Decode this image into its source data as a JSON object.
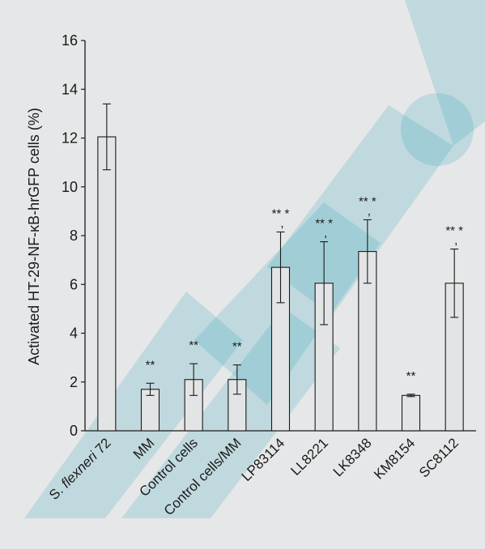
{
  "colors": {
    "background": "#e6e7e8",
    "bar_fill": "#e3e4e5",
    "bar_stroke": "#1a1a1a",
    "watermark": "#2aa4b9"
  },
  "chart_data": {
    "type": "bar",
    "title": "",
    "xlabel": "",
    "ylabel": "Activated HT-29-NF-κB-hrGFP cells (%)",
    "ylim": [
      0,
      16
    ],
    "yticks": [
      0,
      2,
      4,
      6,
      8,
      10,
      12,
      14,
      16
    ],
    "categories": [
      "S. flexneri 72",
      "MM",
      "Control cells",
      "Control cells/MM",
      "LP83114",
      "LL8221",
      "LK8348",
      "KM8154",
      "SC8112"
    ],
    "values": [
      12.05,
      1.7,
      2.1,
      2.1,
      6.7,
      6.05,
      7.35,
      1.45,
      6.05
    ],
    "errors": [
      1.35,
      0.25,
      0.65,
      0.6,
      1.45,
      1.7,
      1.3,
      0.05,
      1.4
    ],
    "significance": [
      "",
      "**",
      "**",
      "**",
      "** *",
      "** *",
      "** *",
      "**",
      "** *"
    ],
    "grid": false
  }
}
